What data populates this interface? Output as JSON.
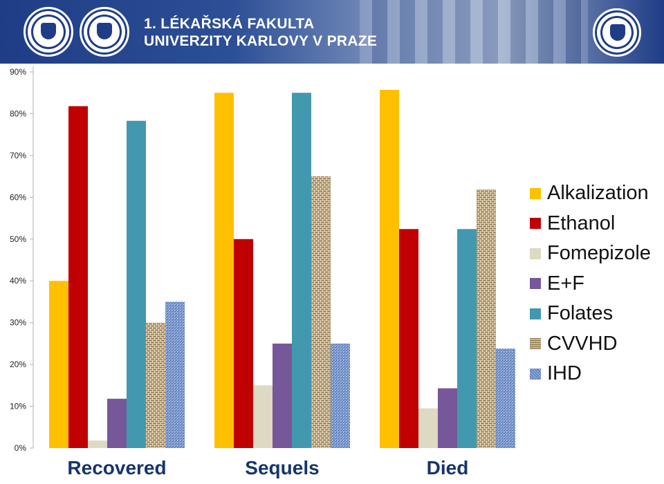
{
  "header": {
    "line1": "1. LÉKAŘSKÁ FAKULTA",
    "line2": "UNIVERZITY KARLOVY V PRAZE"
  },
  "colors": {
    "Alkalization": "#FFC000",
    "Ethanol": "#C00000",
    "Fomepizole": "#DDD9C3",
    "E+F": "#76579A",
    "Folates": "#4298AE",
    "CVVHD": "#B9A37E",
    "IHD": "#7C9CCF"
  },
  "chart_data": {
    "type": "bar",
    "categories": [
      "Recovered",
      "Sequels",
      "Died"
    ],
    "y_ticks": [
      "0%",
      "10%",
      "20%",
      "30%",
      "40%",
      "50%",
      "60%",
      "70%",
      "80%",
      "90%"
    ],
    "ylim": [
      0,
      90
    ],
    "grid": false,
    "legend_position": "right",
    "series": [
      {
        "name": "Alkalization",
        "values": [
          40,
          85,
          85.7
        ]
      },
      {
        "name": "Ethanol",
        "values": [
          81.8,
          50,
          52.4
        ]
      },
      {
        "name": "Fomepizole",
        "values": [
          1.8,
          15,
          9.5
        ]
      },
      {
        "name": "E+F",
        "values": [
          11.8,
          25,
          14.3
        ]
      },
      {
        "name": "Folates",
        "values": [
          78.3,
          85,
          52.4
        ]
      },
      {
        "name": "CVVHD",
        "values": [
          30,
          65,
          61.9
        ]
      },
      {
        "name": "IHD",
        "values": [
          35,
          25,
          23.8
        ]
      }
    ]
  }
}
